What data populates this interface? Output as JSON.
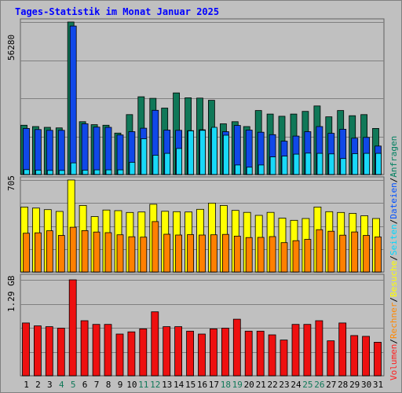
{
  "title": "Tages-Statistik im Monat Januar 2025",
  "panel_max_labels": {
    "hits": "56280",
    "visits": "705",
    "volume": "1.29 GB"
  },
  "legend": {
    "separator": "/",
    "items": [
      {
        "label": "Volumen",
        "color": "#ff2020"
      },
      {
        "label": "Rechner",
        "color": "#ff8800"
      },
      {
        "label": "Besuche",
        "color": "#ffff00"
      },
      {
        "label": "Seiten",
        "color": "#00d8ff"
      },
      {
        "label": "Dateien",
        "color": "#0050ff"
      },
      {
        "label": "Anfragen",
        "color": "#008060"
      }
    ]
  },
  "colors": {
    "anfragen": "#107858",
    "dateien": "#1048e8",
    "seiten": "#18d8f8",
    "besuche": "#ffff00",
    "rechner": "#ff8000",
    "volumen": "#ee1010",
    "day_label": "#000000",
    "weekend_label": "#107858"
  },
  "chart_data": {
    "type": "bar",
    "categories": [
      "1",
      "2",
      "3",
      "4",
      "5",
      "6",
      "7",
      "8",
      "9",
      "10",
      "11",
      "12",
      "13",
      "14",
      "15",
      "16",
      "17",
      "18",
      "19",
      "20",
      "21",
      "22",
      "23",
      "24",
      "25",
      "26",
      "27",
      "28",
      "29",
      "30",
      "31"
    ],
    "weekend_days": [
      "4",
      "5",
      "11",
      "12",
      "18",
      "19",
      "25",
      "26"
    ],
    "panels": [
      {
        "key": "hits",
        "ymax": 56280,
        "series": [
          {
            "name": "Anfragen",
            "color_key": "anfragen",
            "values": [
              18200,
              17700,
              17400,
              17200,
              56280,
              19500,
              18400,
              18200,
              15300,
              22100,
              28700,
              28100,
              24500,
              30100,
              28300,
              28200,
              27400,
              18700,
              19500,
              17700,
              23600,
              22300,
              21500,
              22300,
              23300,
              25300,
              21300,
              23600,
              21700,
              22100,
              17000
            ]
          },
          {
            "name": "Dateien",
            "color_key": "dateien",
            "values": [
              17000,
              16600,
              16300,
              16300,
              54800,
              18700,
              17500,
              17400,
              14600,
              15800,
              17100,
              23700,
              16400,
              16300,
              16200,
              16500,
              16800,
              15800,
              18100,
              16400,
              15600,
              14700,
              12300,
              14200,
              15800,
              17700,
              15200,
              16700,
              13400,
              13700,
              10500
            ]
          },
          {
            "name": "Seiten",
            "color_key": "seiten",
            "values": [
              1800,
              1600,
              1500,
              1500,
              4300,
              1600,
              1700,
              1700,
              1700,
              4500,
              13200,
              7100,
              7800,
              9600,
              16100,
              16300,
              17400,
              14500,
              3500,
              2700,
              3500,
              6500,
              6800,
              7500,
              7900,
              7800,
              7600,
              5900,
              7700,
              7800,
              7800
            ]
          }
        ]
      },
      {
        "key": "visits",
        "ymax": 705,
        "series": [
          {
            "name": "Besuche",
            "color_key": "besuche",
            "values": [
              498,
              490,
              478,
              464,
              705,
              510,
              425,
              475,
              470,
              456,
              460,
              519,
              465,
              462,
              460,
              480,
              528,
              510,
              472,
              457,
              434,
              457,
              413,
              396,
              410,
              498,
              462,
              456,
              449,
              431,
              410
            ]
          },
          {
            "name": "Rechner",
            "color_key": "rechner",
            "values": [
              297,
              300,
              316,
              280,
              343,
              317,
              306,
              301,
              285,
              270,
              267,
              386,
              289,
              283,
              286,
              283,
              285,
              288,
              275,
              264,
              265,
              271,
              225,
              240,
              250,
              324,
              312,
              282,
              307,
              280,
              269
            ]
          }
        ]
      },
      {
        "key": "volume",
        "ymax": 1.29,
        "series": [
          {
            "name": "Volumen",
            "color_key": "volumen",
            "values": [
              0.71,
              0.67,
              0.66,
              0.64,
              1.29,
              0.74,
              0.69,
              0.69,
              0.56,
              0.59,
              0.63,
              0.86,
              0.66,
              0.66,
              0.6,
              0.56,
              0.63,
              0.64,
              0.76,
              0.6,
              0.6,
              0.55,
              0.48,
              0.69,
              0.69,
              0.74,
              0.47,
              0.71,
              0.54,
              0.53,
              0.45
            ]
          }
        ]
      }
    ]
  }
}
